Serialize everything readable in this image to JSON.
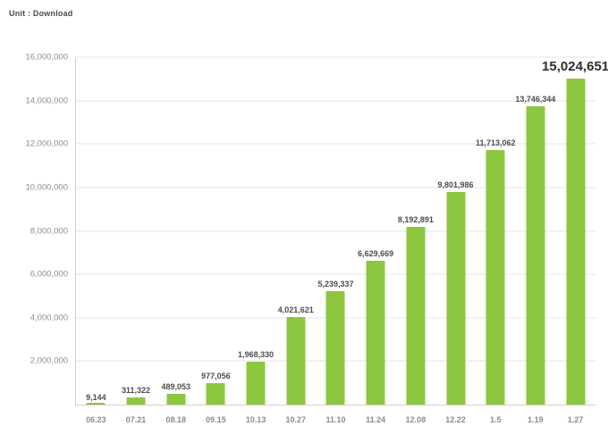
{
  "chart_data": {
    "type": "bar",
    "title": "",
    "unit_label": "Unit : Download",
    "categories": [
      "06.23",
      "07.21",
      "08.18",
      "09.15",
      "10.13",
      "10.27",
      "11.10",
      "11.24",
      "12.08",
      "12.22",
      "1.5",
      "1.19",
      "1.27"
    ],
    "values": [
      9144,
      311322,
      489053,
      977056,
      1968330,
      4021621,
      5239337,
      6629669,
      8192891,
      9801986,
      11713062,
      13746344,
      15024651
    ],
    "value_labels": [
      "9,144",
      "311,322",
      "489,053",
      "977,056",
      "1,968,330",
      "4,021,621",
      "5,239,337",
      "6,629,669",
      "8,192,891",
      "9,801,986",
      "11,713,062",
      "13,746,344",
      "15,024,651"
    ],
    "ylim": [
      0,
      16000000
    ],
    "y_tick_step": 2000000,
    "y_tick_labels": [
      "2,000,000",
      "4,000,000",
      "6,000,000",
      "8,000,000",
      "10,000,000",
      "12,000,000",
      "14,000,000",
      "16,000,000"
    ],
    "bar_color": "#8dc63f",
    "grid": true,
    "legend": "none",
    "highlight_last_label": true
  }
}
